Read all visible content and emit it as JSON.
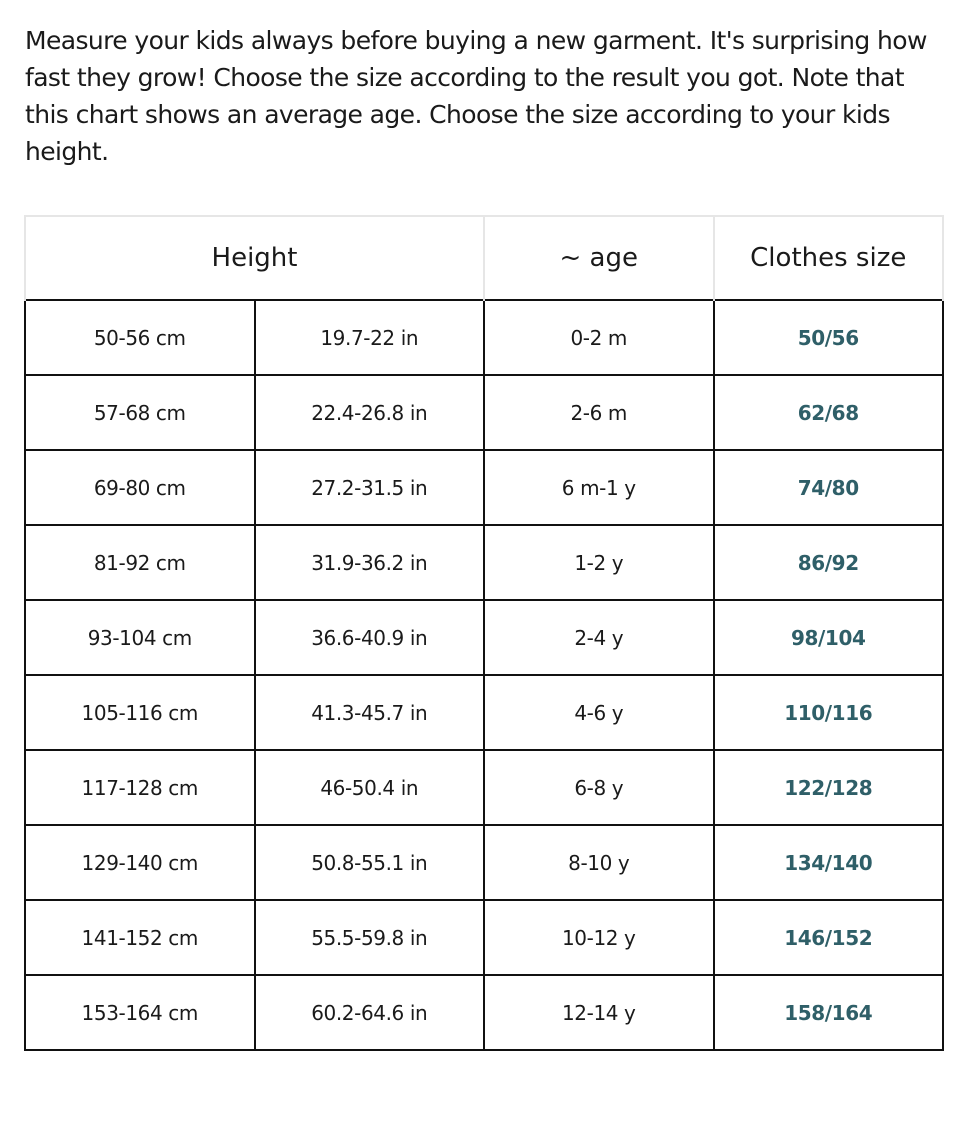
{
  "intro": "Measure your kids always before buying a new garment. It's surprising how fast they grow! Choose the size according to the result you got. Note that this chart shows an average age. Choose the size according to your kids height.",
  "table": {
    "headers": [
      "Height",
      "~ age",
      "Clothes size"
    ],
    "rows": [
      [
        "50-56 cm",
        "19.7-22 in",
        "0-2 m",
        "50/56"
      ],
      [
        "57-68 cm",
        "22.4-26.8 in",
        "2-6 m",
        "62/68"
      ],
      [
        "69-80 cm",
        "27.2-31.5 in",
        "6 m-1 y",
        "74/80"
      ],
      [
        "81-92 cm",
        "31.9-36.2 in",
        "1-2 y",
        "86/92"
      ],
      [
        "93-104 cm",
        "36.6-40.9 in",
        "2-4 y",
        "98/104"
      ],
      [
        "105-116 cm",
        "41.3-45.7 in",
        "4-6 y",
        "110/116"
      ],
      [
        "117-128 cm",
        "46-50.4 in",
        "6-8 y",
        "122/128"
      ],
      [
        "129-140 cm",
        "50.8-55.1 in",
        "8-10 y",
        "134/140"
      ],
      [
        "141-152 cm",
        "55.5-59.8 in",
        "10-12 y",
        "146/152"
      ],
      [
        "153-164 cm",
        "60.2-64.6 in",
        "12-14 y",
        "158/164"
      ]
    ]
  }
}
